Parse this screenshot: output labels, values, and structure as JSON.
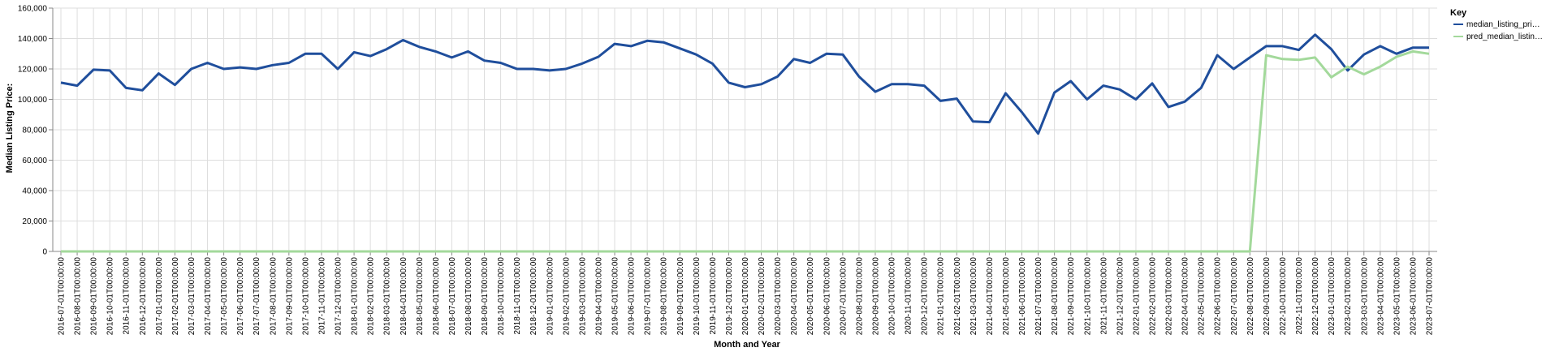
{
  "chart_data": {
    "type": "line",
    "xlabel": "Month and Year",
    "ylabel": "Median Listing Price:",
    "ylim": [
      0,
      160000
    ],
    "y_ticks": [
      "0",
      "20,000",
      "40,000",
      "60,000",
      "80,000",
      "100,000",
      "120,000",
      "140,000",
      "160,000"
    ],
    "grid": true,
    "legend": {
      "title": "Key",
      "position": "top-right"
    },
    "x": [
      "2016-07-01T00:00:00",
      "2016-08-01T00:00:00",
      "2016-09-01T00:00:00",
      "2016-10-01T00:00:00",
      "2016-11-01T00:00:00",
      "2016-12-01T00:00:00",
      "2017-01-01T00:00:00",
      "2017-02-01T00:00:00",
      "2017-03-01T00:00:00",
      "2017-04-01T00:00:00",
      "2017-05-01T00:00:00",
      "2017-06-01T00:00:00",
      "2017-07-01T00:00:00",
      "2017-08-01T00:00:00",
      "2017-09-01T00:00:00",
      "2017-10-01T00:00:00",
      "2017-11-01T00:00:00",
      "2017-12-01T00:00:00",
      "2018-01-01T00:00:00",
      "2018-02-01T00:00:00",
      "2018-03-01T00:00:00",
      "2018-04-01T00:00:00",
      "2018-05-01T00:00:00",
      "2018-06-01T00:00:00",
      "2018-07-01T00:00:00",
      "2018-08-01T00:00:00",
      "2018-09-01T00:00:00",
      "2018-10-01T00:00:00",
      "2018-11-01T00:00:00",
      "2018-12-01T00:00:00",
      "2019-01-01T00:00:00",
      "2019-02-01T00:00:00",
      "2019-03-01T00:00:00",
      "2019-04-01T00:00:00",
      "2019-05-01T00:00:00",
      "2019-06-01T00:00:00",
      "2019-07-01T00:00:00",
      "2019-08-01T00:00:00",
      "2019-09-01T00:00:00",
      "2019-10-01T00:00:00",
      "2019-11-01T00:00:00",
      "2019-12-01T00:00:00",
      "2020-01-01T00:00:00",
      "2020-02-01T00:00:00",
      "2020-03-01T00:00:00",
      "2020-04-01T00:00:00",
      "2020-05-01T00:00:00",
      "2020-06-01T00:00:00",
      "2020-07-01T00:00:00",
      "2020-08-01T00:00:00",
      "2020-09-01T00:00:00",
      "2020-10-01T00:00:00",
      "2020-11-01T00:00:00",
      "2020-12-01T00:00:00",
      "2021-01-01T00:00:00",
      "2021-02-01T00:00:00",
      "2021-03-01T00:00:00",
      "2021-04-01T00:00:00",
      "2021-05-01T00:00:00",
      "2021-06-01T00:00:00",
      "2021-07-01T00:00:00",
      "2021-08-01T00:00:00",
      "2021-09-01T00:00:00",
      "2021-10-01T00:00:00",
      "2021-11-01T00:00:00",
      "2021-12-01T00:00:00",
      "2022-01-01T00:00:00",
      "2022-02-01T00:00:00",
      "2022-03-01T00:00:00",
      "2022-04-01T00:00:00",
      "2022-05-01T00:00:00",
      "2022-06-01T00:00:00",
      "2022-07-01T00:00:00",
      "2022-08-01T00:00:00",
      "2022-09-01T00:00:00",
      "2022-10-01T00:00:00",
      "2022-11-01T00:00:00",
      "2022-12-01T00:00:00",
      "2023-01-01T00:00:00",
      "2023-02-01T00:00:00",
      "2023-03-01T00:00:00",
      "2023-04-01T00:00:00",
      "2023-05-01T00:00:00",
      "2023-06-01T00:00:00",
      "2023-07-01T00:00:00"
    ],
    "series": [
      {
        "name": "median_listing_pri…",
        "color": "#1f4e9c",
        "values": [
          111000,
          109000,
          119500,
          119000,
          107500,
          106000,
          117000,
          109500,
          120000,
          124000,
          120000,
          121000,
          120000,
          122500,
          124000,
          130000,
          130000,
          120000,
          131000,
          128500,
          133000,
          139000,
          134500,
          131500,
          127500,
          131500,
          125500,
          124000,
          120000,
          120000,
          119000,
          120000,
          123500,
          128000,
          136500,
          135000,
          138500,
          137500,
          133500,
          129500,
          123500,
          111000,
          108000,
          110000,
          115000,
          126500,
          124000,
          130000,
          129500,
          115000,
          105000,
          110000,
          110000,
          109000,
          99000,
          100500,
          85500,
          85000,
          104000,
          91500,
          77500,
          104500,
          112000,
          100000,
          109000,
          106500,
          100000,
          110500,
          95000,
          98500,
          107500,
          129000,
          120000,
          127500,
          135000,
          135000,
          132500,
          142500,
          133000,
          119000,
          129500,
          135000,
          130000,
          134000,
          134000
        ]
      },
      {
        "name": "pred_median_listin…",
        "color": "#a3d99b",
        "values": [
          0,
          0,
          0,
          0,
          0,
          0,
          0,
          0,
          0,
          0,
          0,
          0,
          0,
          0,
          0,
          0,
          0,
          0,
          0,
          0,
          0,
          0,
          0,
          0,
          0,
          0,
          0,
          0,
          0,
          0,
          0,
          0,
          0,
          0,
          0,
          0,
          0,
          0,
          0,
          0,
          0,
          0,
          0,
          0,
          0,
          0,
          0,
          0,
          0,
          0,
          0,
          0,
          0,
          0,
          0,
          0,
          0,
          0,
          0,
          0,
          0,
          0,
          0,
          0,
          0,
          0,
          0,
          0,
          0,
          0,
          0,
          0,
          0,
          0,
          129000,
          126500,
          126000,
          127500,
          114500,
          121500,
          116500,
          121500,
          128000,
          131500,
          130000
        ]
      }
    ]
  }
}
